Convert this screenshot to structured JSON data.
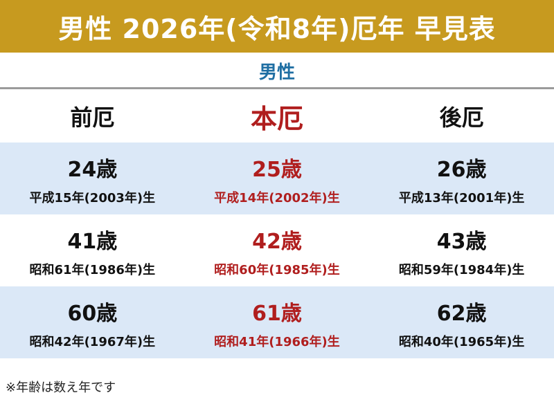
{
  "title": "男性 2026年(令和8年)厄年 早見表",
  "subtitle": "男性",
  "headers": {
    "pre": "前厄",
    "main": "本厄",
    "post": "後厄"
  },
  "rows": [
    {
      "pre": {
        "age": "24歳",
        "birth": "平成15年(2003年)生"
      },
      "main": {
        "age": "25歳",
        "birth": "平成14年(2002年)生"
      },
      "post": {
        "age": "26歳",
        "birth": "平成13年(2001年)生"
      }
    },
    {
      "pre": {
        "age": "41歳",
        "birth": "昭和61年(1986年)生"
      },
      "main": {
        "age": "42歳",
        "birth": "昭和60年(1985年)生"
      },
      "post": {
        "age": "43歳",
        "birth": "昭和59年(1984年)生"
      }
    },
    {
      "pre": {
        "age": "60歳",
        "birth": "昭和42年(1967年)生"
      },
      "main": {
        "age": "61歳",
        "birth": "昭和41年(1966年)生"
      },
      "post": {
        "age": "62歳",
        "birth": "昭和40年(1965年)生"
      }
    }
  ],
  "note": "※年齢は数え年です",
  "colors": {
    "title_bg": "#c79a1f",
    "subtitle": "#1f6fa3",
    "main_red": "#b01e1e",
    "row_shade": "#dbe8f7"
  }
}
